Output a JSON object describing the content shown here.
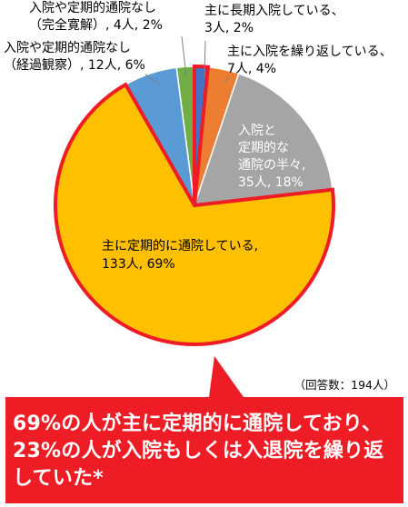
{
  "chart_data": {
    "type": "pie",
    "slices": [
      {
        "key": "long_stay",
        "label_lines": [
          "主に長期入院している、",
          "3人, 2%"
        ],
        "count": 3,
        "percent": 2,
        "color": "#4472C4"
      },
      {
        "key": "repeat_admit",
        "label_lines": [
          "主に入院を繰り返している、",
          "7人, 4%"
        ],
        "count": 7,
        "percent": 4,
        "color": "#ED7D31"
      },
      {
        "key": "half_half",
        "label_lines": [
          "入院と",
          "定期的な",
          "通院の半々,",
          "35人, 18%"
        ],
        "count": 35,
        "percent": 18,
        "color": "#A5A5A5"
      },
      {
        "key": "regular_outpatient",
        "label_lines": [
          "主に定期的に通院している,",
          "133人, 69%"
        ],
        "count": 133,
        "percent": 69,
        "color": "#FFC000"
      },
      {
        "key": "none_observation",
        "label_lines": [
          "入院や定期的通院なし",
          "（経過観察）, 12人, 6%"
        ],
        "count": 12,
        "percent": 6,
        "color": "#5B9BD5"
      },
      {
        "key": "none_remission",
        "label_lines": [
          "入院や定期的通院なし",
          "（完全寛解）, 4人, 2%"
        ],
        "count": 4,
        "percent": 2,
        "color": "#70AD47"
      }
    ],
    "note": "（回答数：194人）",
    "highlight_color": "#EE1C25"
  },
  "callout": {
    "text": "69%の人が主に定期的に通院しており、23%の人が入院もしくは入退院を繰り返していた*",
    "background": "#EE1C25"
  }
}
